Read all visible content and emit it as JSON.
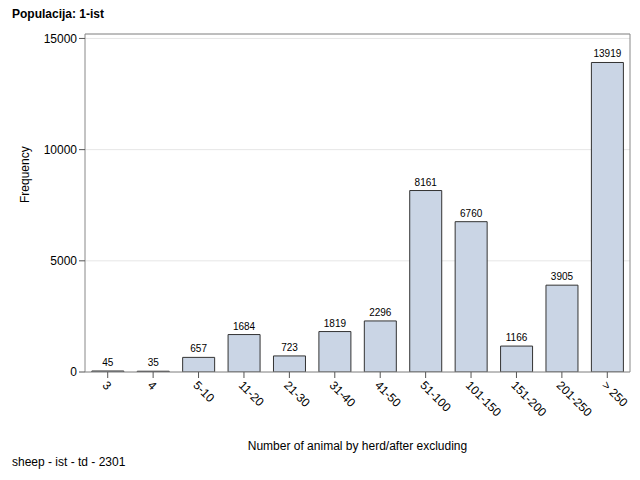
{
  "chart_data": {
    "type": "bar",
    "title": "Populacija: 1-ist",
    "x_label": "Number of animal by herd/after excluding",
    "y_label": "Frequency",
    "annotation": "sheep - ist - td - 2301",
    "categories": [
      "3",
      "4",
      "5-10",
      "11-20",
      "21-30",
      "31-40",
      "41-50",
      "51-100",
      "101-150",
      "151-200",
      "201-250",
      "> 250"
    ],
    "values": [
      45,
      35,
      657,
      1684,
      723,
      1819,
      2296,
      8161,
      6760,
      1166,
      3905,
      13919
    ],
    "color": "#cad5e5",
    "ylim": [
      0,
      15200
    ],
    "yticks": [
      0,
      5000,
      10000,
      15000
    ],
    "grid": true,
    "data_labels": true
  }
}
